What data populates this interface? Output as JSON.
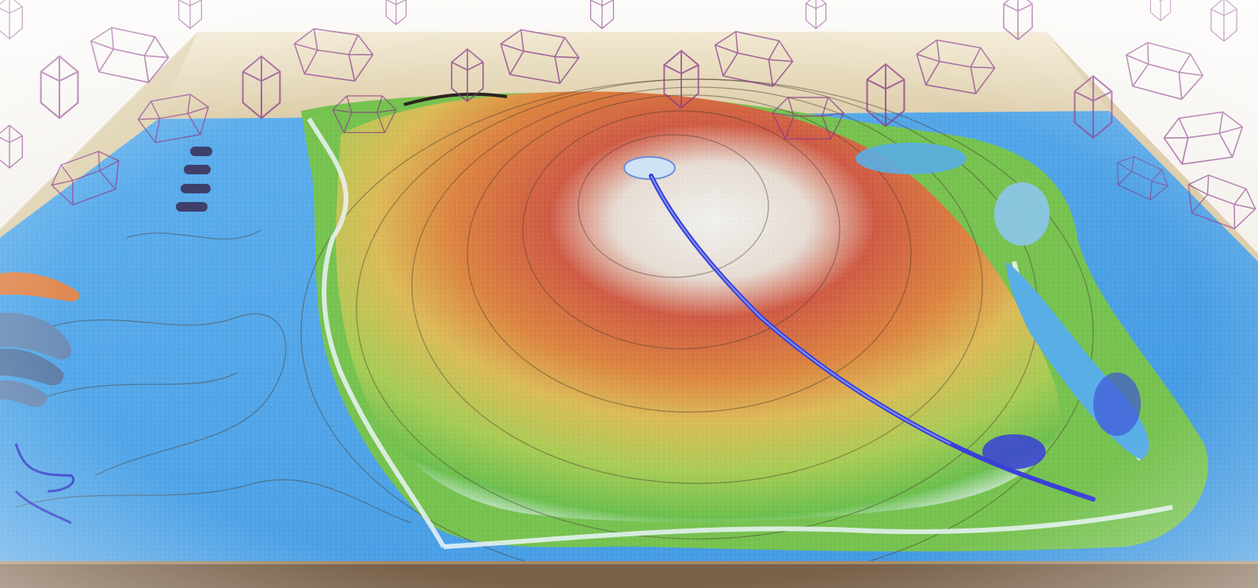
{
  "scene": {
    "subject": "augmented-reality-sandbox",
    "colors": {
      "water": "#4aa3e8",
      "water_dark": "#2f7fd0",
      "lowland": "#8cc84a",
      "midland": "#d8c25a",
      "upland": "#d9783a",
      "peak": "#c6493d",
      "snow": "#eef0f0",
      "river": "#3a40d8",
      "contour": "#4a3b2e",
      "crystal_stroke": "#8a3a8a",
      "wood": "#cfbf9a",
      "box_edge": "#6e5a44"
    },
    "icons": [
      "crystal-icon",
      "hand-icon",
      "volcano-icon",
      "river-icon"
    ]
  }
}
